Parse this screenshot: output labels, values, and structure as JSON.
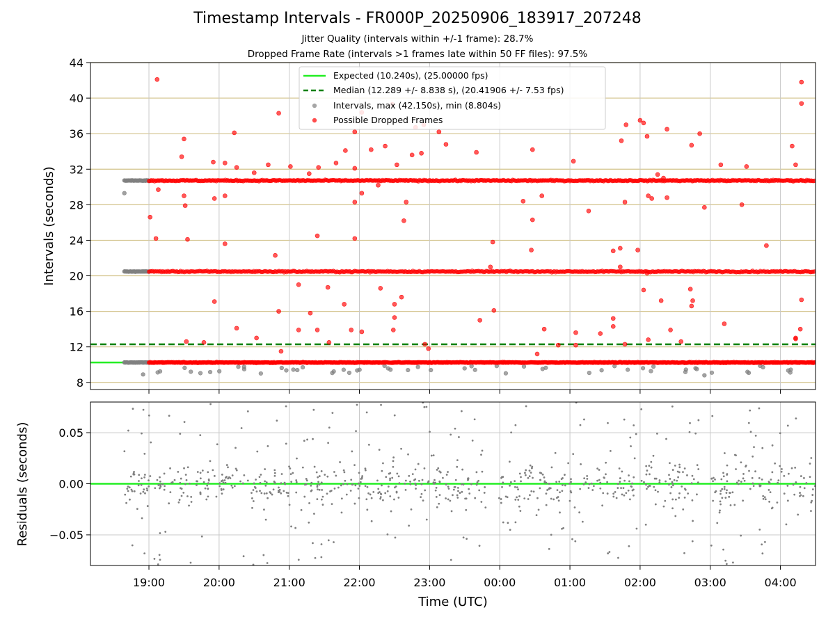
{
  "figure": {
    "title": "Timestamp Intervals - FR000P_20250906_183917_207248",
    "subtitle_jitter": "Jitter Quality (intervals within +/-1 frame): 28.7%",
    "subtitle_dropped": "Dropped Frame Rate (intervals >1 frames late within 50 FF files): 97.5%"
  },
  "colors": {
    "expected": "#22ee22",
    "median": "#008000",
    "intervals": "#808080",
    "dropped": "#ff0000",
    "hline": "#d2c28a",
    "grid": "#c8c8c8"
  },
  "chart_data": [
    {
      "type": "scatter",
      "name": "intervals",
      "ylabel": "Intervals (seconds)",
      "xlim_hours_utc": [
        "18:10",
        "04:30"
      ],
      "ylim": [
        7.2,
        44
      ],
      "yticks": [
        8,
        12,
        16,
        20,
        24,
        28,
        32,
        36,
        40,
        44
      ],
      "yticklabels": [
        "8",
        "12",
        "16",
        "20",
        "24",
        "28",
        "32",
        "36",
        "40",
        "44"
      ],
      "x_grid_hours_utc": [
        "19:00",
        "20:00",
        "21:00",
        "22:00",
        "23:00",
        "00:00",
        "01:00",
        "02:00",
        "03:00",
        "04:00"
      ],
      "horizontal_lines": [
        8,
        12,
        16,
        20,
        24,
        28,
        32,
        36,
        40,
        44
      ],
      "grid": true,
      "legend_position": "top-center",
      "expected_interval": 10.24,
      "median_interval": 12.289,
      "legend": [
        {
          "label": "Expected (10.240s), (25.00000 fps)",
          "style": "line",
          "color": "#22ee22"
        },
        {
          "label": "Median (12.289 +/- 8.838 s), (20.41906 +/- 7.53 fps)",
          "style": "dashed",
          "color": "#008000"
        },
        {
          "label": "Intervals, max (42.150s), min (8.804s)",
          "style": "marker",
          "color": "#808080"
        },
        {
          "label": "Possible Dropped Frames",
          "style": "marker",
          "color": "#ff0000"
        }
      ],
      "interval_bands": [
        10.24,
        20.48,
        30.72
      ],
      "data_range": {
        "start_utc": "18:39",
        "end_utc": "04:30",
        "max": 42.15,
        "min": 8.804
      },
      "outliers": [
        {
          "x": "19:01",
          "y": 26.6
        },
        {
          "x": "19:07",
          "y": 42.1
        },
        {
          "x": "19:08",
          "y": 29.7
        },
        {
          "x": "19:06",
          "y": 24.2
        },
        {
          "x": "19:30",
          "y": 35.4
        },
        {
          "x": "19:28",
          "y": 33.4
        },
        {
          "x": "19:31",
          "y": 27.9
        },
        {
          "x": "19:30",
          "y": 29.0
        },
        {
          "x": "19:33",
          "y": 24.1
        },
        {
          "x": "19:32",
          "y": 12.6
        },
        {
          "x": "19:47",
          "y": 12.5
        },
        {
          "x": "19:55",
          "y": 32.8
        },
        {
          "x": "19:56",
          "y": 28.7
        },
        {
          "x": "19:56",
          "y": 17.1
        },
        {
          "x": "20:05",
          "y": 32.7
        },
        {
          "x": "20:05",
          "y": 29.0
        },
        {
          "x": "20:05",
          "y": 23.6
        },
        {
          "x": "20:13",
          "y": 36.1
        },
        {
          "x": "20:15",
          "y": 32.2
        },
        {
          "x": "20:15",
          "y": 14.1
        },
        {
          "x": "20:30",
          "y": 31.6
        },
        {
          "x": "20:32",
          "y": 13.0
        },
        {
          "x": "20:42",
          "y": 32.5
        },
        {
          "x": "20:48",
          "y": 22.3
        },
        {
          "x": "20:51",
          "y": 38.3
        },
        {
          "x": "20:51",
          "y": 16.0
        },
        {
          "x": "20:53",
          "y": 11.5
        },
        {
          "x": "21:01",
          "y": 32.3
        },
        {
          "x": "21:08",
          "y": 19.0
        },
        {
          "x": "21:08",
          "y": 13.9
        },
        {
          "x": "21:17",
          "y": 31.5
        },
        {
          "x": "21:18",
          "y": 15.8
        },
        {
          "x": "21:25",
          "y": 32.2
        },
        {
          "x": "21:24",
          "y": 13.9
        },
        {
          "x": "21:34",
          "y": 12.5
        },
        {
          "x": "21:24",
          "y": 24.5
        },
        {
          "x": "21:33",
          "y": 18.7
        },
        {
          "x": "21:40",
          "y": 32.7
        },
        {
          "x": "21:48",
          "y": 34.1
        },
        {
          "x": "21:47",
          "y": 16.8
        },
        {
          "x": "21:53",
          "y": 13.9
        },
        {
          "x": "21:56",
          "y": 32.1
        },
        {
          "x": "21:56",
          "y": 24.2
        },
        {
          "x": "21:56",
          "y": 28.3
        },
        {
          "x": "21:56",
          "y": 36.2
        },
        {
          "x": "22:02",
          "y": 38.4
        },
        {
          "x": "22:02",
          "y": 29.3
        },
        {
          "x": "22:02",
          "y": 13.7
        },
        {
          "x": "22:10",
          "y": 34.2
        },
        {
          "x": "22:16",
          "y": 30.2
        },
        {
          "x": "22:18",
          "y": 18.6
        },
        {
          "x": "22:22",
          "y": 34.6
        },
        {
          "x": "22:28",
          "y": 39.3
        },
        {
          "x": "22:30",
          "y": 16.8
        },
        {
          "x": "22:30",
          "y": 15.3
        },
        {
          "x": "22:29",
          "y": 13.9
        },
        {
          "x": "22:32",
          "y": 32.5
        },
        {
          "x": "22:36",
          "y": 17.6
        },
        {
          "x": "22:38",
          "y": 26.2
        },
        {
          "x": "22:40",
          "y": 28.3
        },
        {
          "x": "22:45",
          "y": 33.6
        },
        {
          "x": "22:48",
          "y": 36.7
        },
        {
          "x": "22:53",
          "y": 33.8
        },
        {
          "x": "22:55",
          "y": 37.0
        },
        {
          "x": "22:56",
          "y": 12.3
        },
        {
          "x": "22:59",
          "y": 11.8
        },
        {
          "x": "23:08",
          "y": 36.2
        },
        {
          "x": "23:14",
          "y": 34.8
        },
        {
          "x": "23:40",
          "y": 33.9
        },
        {
          "x": "23:43",
          "y": 15.0
        },
        {
          "x": "23:52",
          "y": 21.0
        },
        {
          "x": "23:54",
          "y": 23.8
        },
        {
          "x": "23:55",
          "y": 16.1
        },
        {
          "x": "00:20",
          "y": 28.4
        },
        {
          "x": "00:28",
          "y": 34.2
        },
        {
          "x": "00:28",
          "y": 26.3
        },
        {
          "x": "00:27",
          "y": 22.9
        },
        {
          "x": "00:32",
          "y": 11.2
        },
        {
          "x": "00:36",
          "y": 29.0
        },
        {
          "x": "00:38",
          "y": 14.0
        },
        {
          "x": "00:50",
          "y": 12.2
        },
        {
          "x": "01:03",
          "y": 32.9
        },
        {
          "x": "01:05",
          "y": 13.6
        },
        {
          "x": "01:05",
          "y": 12.2
        },
        {
          "x": "01:16",
          "y": 27.3
        },
        {
          "x": "01:26",
          "y": 13.5
        },
        {
          "x": "01:37",
          "y": 22.8
        },
        {
          "x": "01:37",
          "y": 15.2
        },
        {
          "x": "01:37",
          "y": 14.3
        },
        {
          "x": "01:43",
          "y": 23.1
        },
        {
          "x": "01:43",
          "y": 21.0
        },
        {
          "x": "01:44",
          "y": 35.2
        },
        {
          "x": "01:47",
          "y": 12.3
        },
        {
          "x": "01:48",
          "y": 37.0
        },
        {
          "x": "01:47",
          "y": 28.3
        },
        {
          "x": "01:58",
          "y": 22.9
        },
        {
          "x": "02:00",
          "y": 37.5
        },
        {
          "x": "02:03",
          "y": 37.2
        },
        {
          "x": "02:06",
          "y": 35.7
        },
        {
          "x": "02:03",
          "y": 18.4
        },
        {
          "x": "02:07",
          "y": 29.0
        },
        {
          "x": "02:06",
          "y": 20.3
        },
        {
          "x": "02:10",
          "y": 28.7
        },
        {
          "x": "02:07",
          "y": 12.8
        },
        {
          "x": "02:15",
          "y": 31.4
        },
        {
          "x": "02:18",
          "y": 17.2
        },
        {
          "x": "02:20",
          "y": 31.0
        },
        {
          "x": "02:23",
          "y": 36.5
        },
        {
          "x": "02:23",
          "y": 28.8
        },
        {
          "x": "02:26",
          "y": 13.9
        },
        {
          "x": "02:35",
          "y": 12.6
        },
        {
          "x": "02:44",
          "y": 34.7
        },
        {
          "x": "02:44",
          "y": 16.6
        },
        {
          "x": "02:43",
          "y": 18.5
        },
        {
          "x": "02:45",
          "y": 17.2
        },
        {
          "x": "02:51",
          "y": 36.0
        },
        {
          "x": "02:55",
          "y": 27.7
        },
        {
          "x": "03:09",
          "y": 32.5
        },
        {
          "x": "03:12",
          "y": 14.6
        },
        {
          "x": "03:27",
          "y": 28.0
        },
        {
          "x": "03:31",
          "y": 32.3
        },
        {
          "x": "03:48",
          "y": 23.4
        },
        {
          "x": "04:10",
          "y": 34.6
        },
        {
          "x": "04:13",
          "y": 32.5
        },
        {
          "x": "04:13",
          "y": 13.0
        },
        {
          "x": "04:17",
          "y": 14.0
        },
        {
          "x": "04:18",
          "y": 41.8
        },
        {
          "x": "04:18",
          "y": 39.4
        },
        {
          "x": "04:18",
          "y": 17.3
        },
        {
          "x": "04:13",
          "y": 12.9
        }
      ]
    },
    {
      "type": "scatter",
      "name": "residuals",
      "xlabel": "Time (UTC)",
      "ylabel": "Residuals (seconds)",
      "xlim_hours_utc": [
        "18:10",
        "04:30"
      ],
      "ylim": [
        -0.08,
        0.08
      ],
      "yticks": [
        -0.05,
        0.0,
        0.05
      ],
      "yticklabels": [
        "−0.05",
        "0.00",
        "0.05"
      ],
      "xticks_utc": [
        "19:00",
        "20:00",
        "21:00",
        "22:00",
        "23:00",
        "00:00",
        "01:00",
        "02:00",
        "03:00",
        "04:00"
      ],
      "xticklabels": [
        "19:00",
        "20:00",
        "21:00",
        "22:00",
        "23:00",
        "00:00",
        "01:00",
        "02:00",
        "03:00",
        "04:00"
      ],
      "grid": true,
      "zero_line": 0.0,
      "residual_spread": [
        -0.08,
        0.08
      ],
      "gaps_utc": [
        [
          "23:48",
          "23:58"
        ],
        [
          "02:50",
          "03:00"
        ]
      ]
    }
  ]
}
